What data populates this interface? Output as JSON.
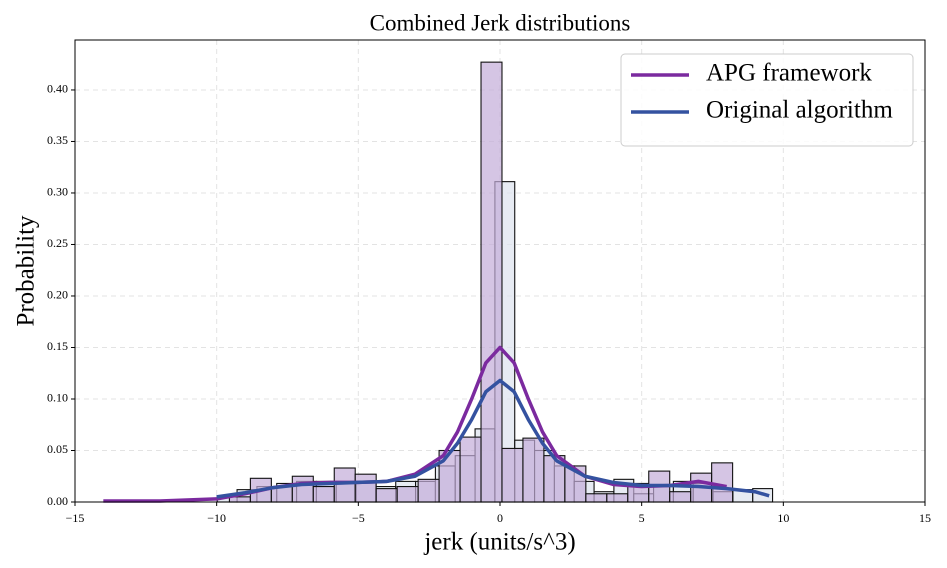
{
  "chart_data": {
    "type": "histogram",
    "title": "Combined Jerk distributions",
    "x_label": "jerk (units/s^3)",
    "y_label": "Probability",
    "xlim": [
      -15,
      15
    ],
    "ylim": [
      0,
      0.4485
    ],
    "xticks": [
      {
        "value": -15,
        "label": "−15"
      },
      {
        "value": -10,
        "label": "−10"
      },
      {
        "value": -5,
        "label": "−5"
      },
      0,
      5,
      10,
      15
    ],
    "yticks": [
      {
        "value": 0,
        "label": "0.00"
      },
      {
        "value": 0.05,
        "label": "0.05"
      },
      {
        "value": 0.1,
        "label": "0.10"
      },
      {
        "value": 0.15,
        "label": "0.15"
      },
      {
        "value": 0.2,
        "label": "0.20"
      },
      {
        "value": 0.25,
        "label": "0.25"
      },
      {
        "value": 0.3,
        "label": "0.30"
      },
      {
        "value": 0.35,
        "label": "0.35"
      },
      {
        "value": 0.4,
        "label": "0.40"
      }
    ],
    "grid": true,
    "legend": "upper right",
    "histograms": [
      {
        "color": "#dde3ee",
        "bins": [
          -9.98,
          -9.28,
          -8.58,
          -7.88,
          -7.18,
          -6.48,
          -5.78,
          -5.08,
          -4.38,
          -3.68,
          -2.98,
          -2.28,
          -1.58,
          -0.88,
          -0.18,
          0.52,
          1.22,
          1.92,
          2.62,
          3.32,
          4.02,
          4.72,
          5.42,
          6.12,
          6.82,
          7.52,
          8.22,
          8.92,
          9.62
        ],
        "values": [
          0.006,
          0.012,
          0.015,
          0.018,
          0.02,
          0.02,
          0.02,
          0.02,
          0.015,
          0.02,
          0.02,
          0.035,
          0.045,
          0.071,
          0.311,
          0.06,
          0.05,
          0.035,
          0.02,
          0.01,
          0.022,
          0.008,
          0.015,
          0.02,
          0.018,
          0.01,
          0.012,
          0.013
        ]
      },
      {
        "color": "#c3acd9",
        "bins": [
          -9.55,
          -8.81,
          -8.07,
          -7.33,
          -6.59,
          -5.85,
          -5.11,
          -4.37,
          -3.63,
          -2.89,
          -2.15,
          -1.41,
          -0.67,
          0.07,
          0.81,
          1.55,
          2.29,
          3.03,
          3.77,
          4.51,
          5.25,
          5.99,
          6.73,
          7.47,
          8.21
        ],
        "values": [
          0.005,
          0.023,
          0.015,
          0.025,
          0.015,
          0.033,
          0.027,
          0.013,
          0.015,
          0.022,
          0.05,
          0.063,
          0.427,
          0.052,
          0.062,
          0.045,
          0.035,
          0.008,
          0.008,
          0.018,
          0.03,
          0.01,
          0.028,
          0.038
        ]
      }
    ],
    "series": [
      {
        "name": "APG framework",
        "color": "#7b2a9f",
        "x": [
          -14,
          -12,
          -10,
          -9,
          -8,
          -7,
          -6,
          -5,
          -4,
          -3,
          -2,
          -1.5,
          -1,
          -0.5,
          0,
          0.5,
          1,
          1.5,
          2,
          3,
          4,
          5,
          6,
          7,
          8
        ],
        "values": [
          0.001,
          0.001,
          0.003,
          0.008,
          0.014,
          0.018,
          0.019,
          0.019,
          0.02,
          0.027,
          0.045,
          0.068,
          0.1,
          0.135,
          0.15,
          0.135,
          0.1,
          0.068,
          0.045,
          0.025,
          0.017,
          0.015,
          0.016,
          0.02,
          0.015
        ]
      },
      {
        "name": "Original algorithm",
        "color": "#3452a0",
        "x": [
          -10,
          -9,
          -8,
          -7,
          -6,
          -5,
          -4,
          -3,
          -2,
          -1.5,
          -1,
          -0.5,
          0,
          0.5,
          1,
          1.5,
          2,
          3,
          4,
          5,
          6,
          7,
          8,
          9,
          9.5
        ],
        "values": [
          0.005,
          0.009,
          0.014,
          0.017,
          0.018,
          0.019,
          0.02,
          0.025,
          0.04,
          0.057,
          0.08,
          0.107,
          0.118,
          0.107,
          0.08,
          0.057,
          0.04,
          0.025,
          0.019,
          0.016,
          0.016,
          0.015,
          0.013,
          0.01,
          0.006
        ]
      }
    ]
  }
}
